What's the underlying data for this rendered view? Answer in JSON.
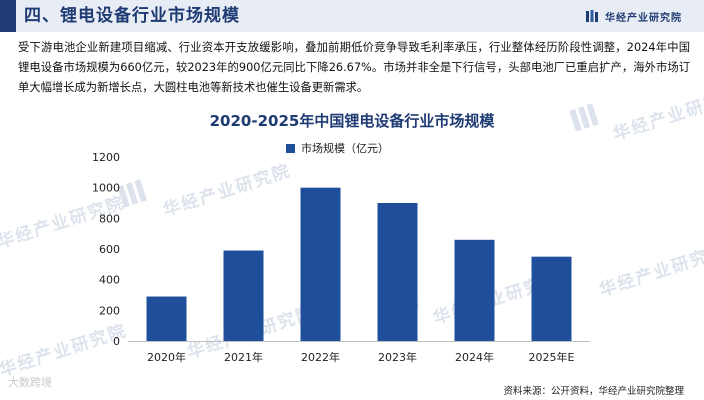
{
  "header": {
    "title": "四、锂电设备行业市场规模",
    "brand": "华经产业研究院"
  },
  "intro": "受下游电池企业新建项目缩减、行业资本开支放缓影响，叠加前期低价竞争导致毛利率承压，行业整体经历阶段性调整，2024年中国锂电设备市场规模为660亿元，较2023年的900亿元同比下降26.67%。市场并非全是下行信号，头部电池厂已重启扩产，海外市场订单大幅增长成为新增长点，大圆柱电池等新技术也催生设备更新需求。",
  "watermark": "华经产业研究院",
  "corner_mark": "大数跨境",
  "source": "资料来源：公开资料，华经产业研究院整理",
  "colors": {
    "accent": "#1f3b73",
    "bar": "#1f4e9b",
    "header_bg": "#e8edf5"
  },
  "chart_data": {
    "type": "bar",
    "title": "2020-2025年中国锂电设备行业市场规模",
    "categories": [
      "2020年",
      "2021年",
      "2022年",
      "2023年",
      "2024年",
      "2025年E"
    ],
    "series": [
      {
        "name": "市场规模（亿元）",
        "values": [
          290,
          590,
          1000,
          900,
          660,
          550
        ]
      }
    ],
    "yticks": [
      0,
      200,
      400,
      600,
      800,
      1000,
      1200
    ],
    "ylim": [
      0,
      1200
    ],
    "legend": "top-center",
    "grid": false
  }
}
